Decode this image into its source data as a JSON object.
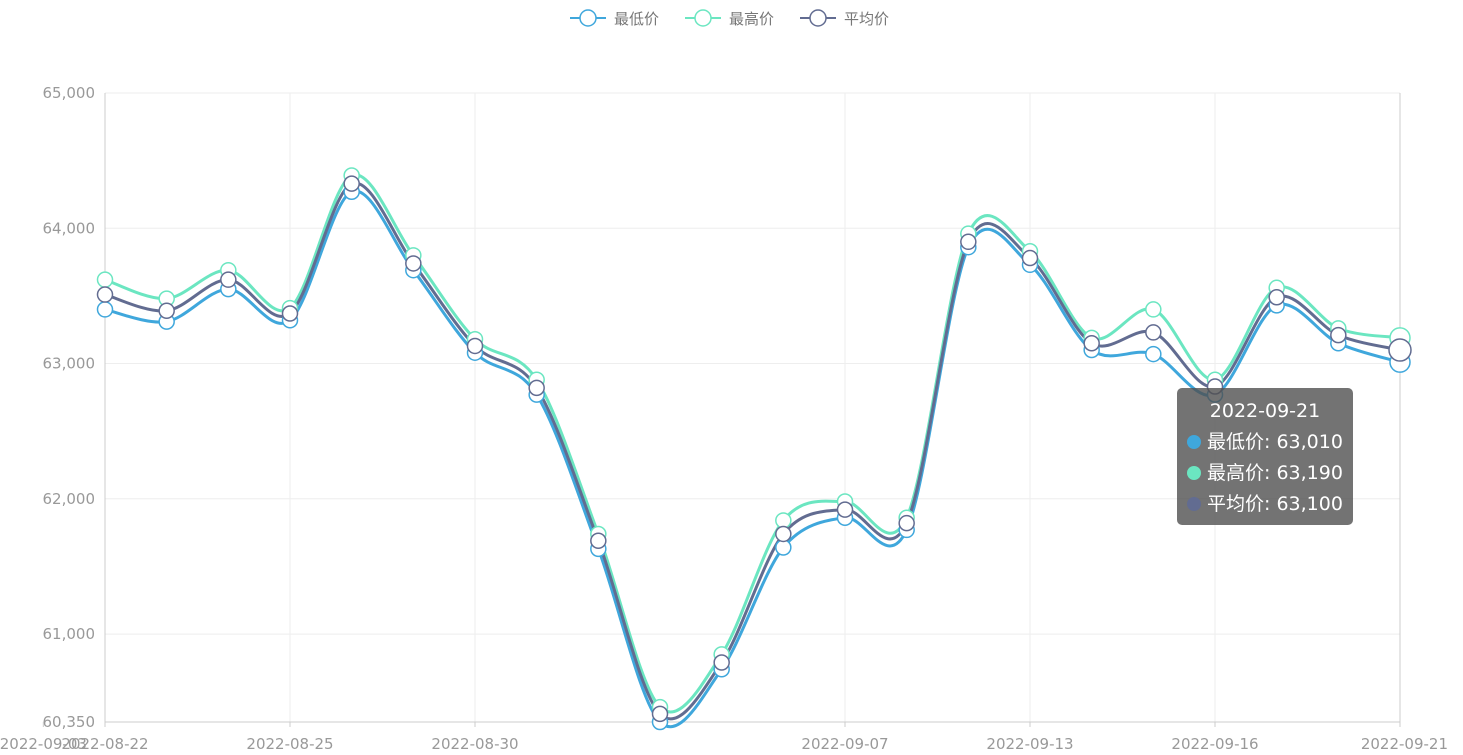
{
  "chart_data": {
    "type": "line",
    "smooth": true,
    "x": [
      "2022-08-22",
      "2022-08-23",
      "2022-08-24",
      "2022-08-25",
      "2022-08-26",
      "2022-08-29",
      "2022-08-30",
      "2022-08-31",
      "2022-09-01",
      "2022-09-02",
      "2022-09-05",
      "2022-09-06",
      "2022-09-07",
      "2022-09-08",
      "2022-09-09",
      "2022-09-13",
      "2022-09-14",
      "2022-09-15",
      "2022-09-16",
      "2022-09-19",
      "2022-09-20",
      "2022-09-21"
    ],
    "xtick_labels": [
      "2022-08-22",
      "2022-08-25",
      "2022-08-30",
      "2022-09-03",
      "2022-09-07",
      "2022-09-13",
      "2022-09-16",
      "2022-09-21"
    ],
    "ylim": [
      60350,
      65000
    ],
    "ytick_labels": [
      "60,350",
      "61,000",
      "62,000",
      "63,000",
      "64,000",
      "65,000"
    ],
    "ytick_values": [
      60350,
      61000,
      62000,
      63000,
      64000,
      65000
    ],
    "grid": true,
    "legend_position": "top",
    "series": [
      {
        "name": "最低价",
        "color": "#3fa7dc",
        "values": [
          63400,
          63310,
          63550,
          63320,
          64270,
          63690,
          63080,
          62770,
          61630,
          60350,
          60740,
          61640,
          61860,
          61770,
          63860,
          63730,
          63100,
          63070,
          62770,
          63430,
          63150,
          63010
        ]
      },
      {
        "name": "最高价",
        "color": "#6be6c1",
        "values": [
          63620,
          63480,
          63690,
          63410,
          64390,
          63800,
          63180,
          62880,
          61740,
          60460,
          60850,
          61840,
          61980,
          61860,
          63960,
          63830,
          63190,
          63400,
          62880,
          63560,
          63260,
          63190
        ]
      },
      {
        "name": "平均价",
        "color": "#626c91",
        "values": [
          63510,
          63390,
          63620,
          63370,
          64330,
          63740,
          63130,
          62820,
          61690,
          60410,
          60790,
          61740,
          61920,
          61820,
          63900,
          63780,
          63150,
          63230,
          62830,
          63490,
          63210,
          63100
        ]
      }
    ]
  },
  "tooltip": {
    "title": "2022-09-21",
    "rows": [
      {
        "text": "最低价: 63,010",
        "color": "#3fa7dc"
      },
      {
        "text": "最高价: 63,190",
        "color": "#6be6c1"
      },
      {
        "text": "平均价: 63,100",
        "color": "#626c91"
      }
    ]
  }
}
